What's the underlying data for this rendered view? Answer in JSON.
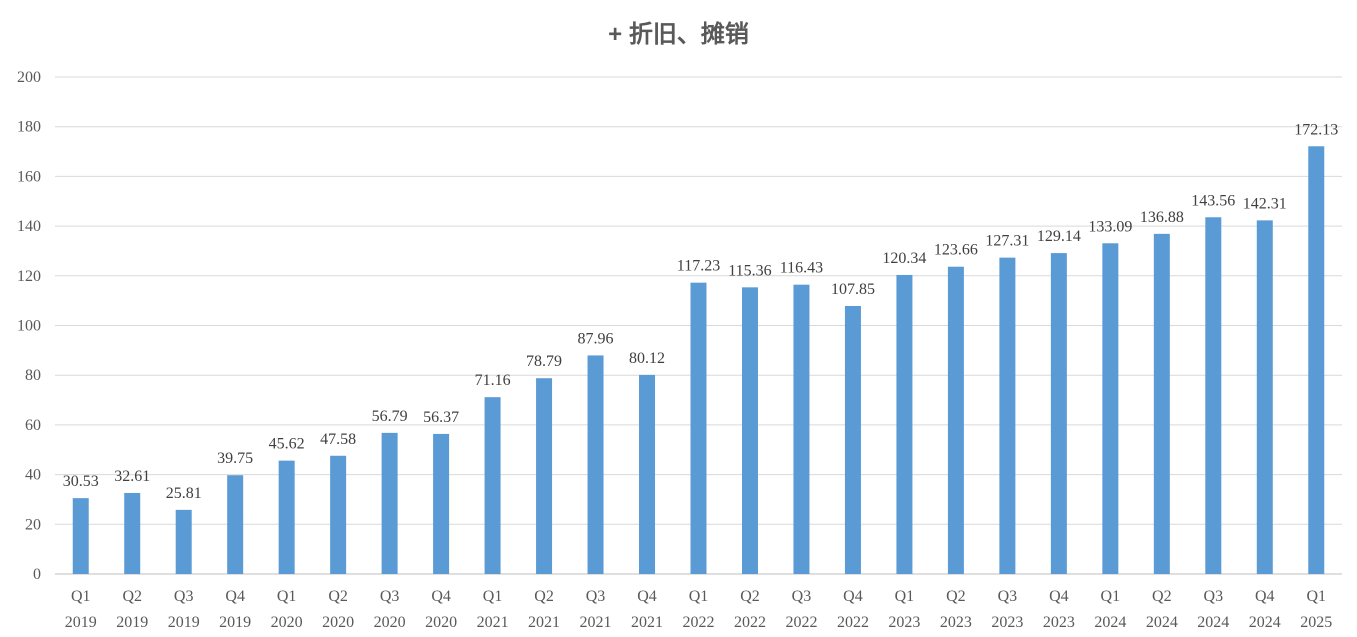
{
  "chart_data": {
    "type": "bar",
    "title": "+ 折旧、摊销",
    "xlabel": "",
    "ylabel": "",
    "ylim": [
      0,
      200
    ],
    "yticks": [
      0,
      20,
      40,
      60,
      80,
      100,
      120,
      140,
      160,
      180,
      200
    ],
    "grid": true,
    "legend": "none",
    "colors": {
      "bar": "#5b9bd5",
      "grid": "#d9d9d9",
      "axis": "#bfbfbf",
      "text": "#595959"
    },
    "categories": [
      [
        "Q1",
        "2019"
      ],
      [
        "Q2",
        "2019"
      ],
      [
        "Q3",
        "2019"
      ],
      [
        "Q4",
        "2019"
      ],
      [
        "Q1",
        "2020"
      ],
      [
        "Q2",
        "2020"
      ],
      [
        "Q3",
        "2020"
      ],
      [
        "Q4",
        "2020"
      ],
      [
        "Q1",
        "2021"
      ],
      [
        "Q2",
        "2021"
      ],
      [
        "Q3",
        "2021"
      ],
      [
        "Q4",
        "2021"
      ],
      [
        "Q1",
        "2022"
      ],
      [
        "Q2",
        "2022"
      ],
      [
        "Q3",
        "2022"
      ],
      [
        "Q4",
        "2022"
      ],
      [
        "Q1",
        "2023"
      ],
      [
        "Q2",
        "2023"
      ],
      [
        "Q3",
        "2023"
      ],
      [
        "Q4",
        "2023"
      ],
      [
        "Q1",
        "2024"
      ],
      [
        "Q2",
        "2024"
      ],
      [
        "Q3",
        "2024"
      ],
      [
        "Q4",
        "2024"
      ],
      [
        "Q1",
        "2025"
      ]
    ],
    "values": [
      30.53,
      32.61,
      25.81,
      39.75,
      45.62,
      47.58,
      56.79,
      56.37,
      71.16,
      78.79,
      87.96,
      80.12,
      117.23,
      115.36,
      116.43,
      107.85,
      120.34,
      123.66,
      127.31,
      129.14,
      133.09,
      136.88,
      143.56,
      142.31,
      172.13
    ],
    "data_labels": [
      "30.53",
      "32.61",
      "25.81",
      "39.75",
      "45.62",
      "47.58",
      "56.79",
      "56.37",
      "71.16",
      "78.79",
      "87.96",
      "80.12",
      "117.23",
      "115.36",
      "116.43",
      "107.85",
      "120.34",
      "123.66",
      "127.31",
      "129.14",
      "133.09",
      "136.88",
      "143.56",
      "142.31",
      "172.13"
    ]
  }
}
